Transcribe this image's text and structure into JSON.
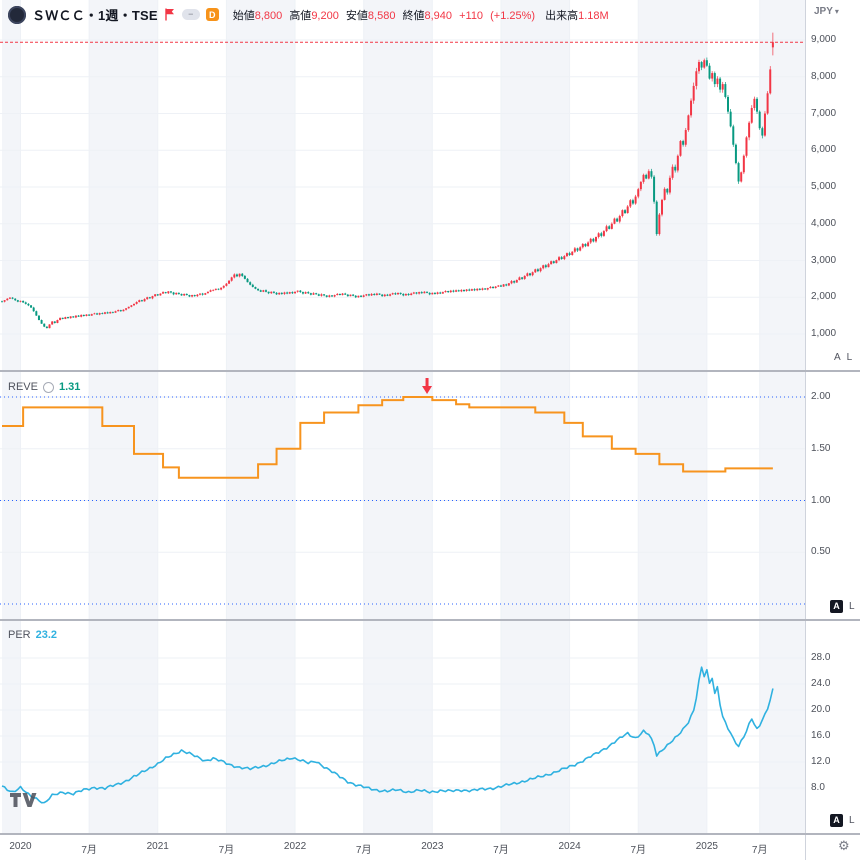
{
  "header": {
    "symbol_title": "ＳＷＣＣ・1週・TSE",
    "badge_d": "D",
    "ohlc": {
      "open_label": "始値",
      "open": "8,800",
      "high_label": "高値",
      "high": "9,200",
      "low_label": "安値",
      "low": "8,580",
      "close_label": "終値",
      "close": "8,940",
      "change": "+110",
      "change_pct": "(+1.25%)"
    },
    "volume_label": "出来高",
    "volume": "1.18M",
    "currency": "JPY"
  },
  "icons": {
    "adjustment_dash": "−",
    "caret_down": "▾",
    "gear": "⚙"
  },
  "panes": {
    "reve": {
      "label": "REVE",
      "value": "1.31"
    },
    "per": {
      "label": "PER",
      "value": "23.2"
    }
  },
  "scale_buttons": {
    "auto": "A",
    "log": "L"
  },
  "axes": {
    "price_ticks": [
      {
        "label": "9,000",
        "value": 9000
      },
      {
        "label": "8,000",
        "value": 8000
      },
      {
        "label": "7,000",
        "value": 7000
      },
      {
        "label": "6,000",
        "value": 6000
      },
      {
        "label": "5,000",
        "value": 5000
      },
      {
        "label": "4,000",
        "value": 4000
      },
      {
        "label": "3,000",
        "value": 3000
      },
      {
        "label": "2,000",
        "value": 2000
      },
      {
        "label": "1,000",
        "value": 1000
      }
    ],
    "reve_ticks": [
      {
        "label": "2.00",
        "value": 2.0
      },
      {
        "label": "1.50",
        "value": 1.5
      },
      {
        "label": "1.00",
        "value": 1.0
      },
      {
        "label": "0.50",
        "value": 0.5
      }
    ],
    "per_ticks": [
      {
        "label": "28.0",
        "value": 28
      },
      {
        "label": "24.0",
        "value": 24
      },
      {
        "label": "20.0",
        "value": 20
      },
      {
        "label": "16.0",
        "value": 16
      },
      {
        "label": "12.0",
        "value": 12
      },
      {
        "label": "8.0",
        "value": 8
      }
    ]
  },
  "time_axis": {
    "ticks": [
      {
        "label": "2020",
        "week": 7
      },
      {
        "label": "7月",
        "week": 33
      },
      {
        "label": "2021",
        "week": 59
      },
      {
        "label": "7月",
        "week": 85
      },
      {
        "label": "2022",
        "week": 111
      },
      {
        "label": "7月",
        "week": 137
      },
      {
        "label": "2023",
        "week": 163
      },
      {
        "label": "7月",
        "week": 189
      },
      {
        "label": "2024",
        "week": 215
      },
      {
        "label": "7月",
        "week": 241
      },
      {
        "label": "2025",
        "week": 267
      },
      {
        "label": "7月",
        "week": 287
      }
    ]
  },
  "colors": {
    "up": "#f23645",
    "down": "#089981",
    "reve_line": "#f7941e",
    "per_line": "#2fb1e0",
    "dotted_level": "#2962ff",
    "current_price_line": "#f23645",
    "grid": "#eef1f6",
    "band": "#f3f5f9",
    "value_green": "#089981"
  },
  "chart_data": [
    {
      "type": "candlestick",
      "name": "ＳＷＣＣ 株価 週足",
      "unit": "JPY",
      "interval": "1週",
      "x_unit": "week_index_from_2019-11",
      "ylim": [
        0,
        10000
      ],
      "grid_values": [
        1000,
        2000,
        3000,
        4000,
        5000,
        6000,
        7000,
        8000,
        9000
      ],
      "last_candle": {
        "open": 8800,
        "high": 9200,
        "low": 8580,
        "close": 8940,
        "change": 110,
        "change_pct": 1.25,
        "volume": "1.18M"
      },
      "closes": [
        1880,
        1920,
        1960,
        1990,
        1960,
        1920,
        1880,
        1900,
        1860,
        1820,
        1780,
        1720,
        1620,
        1500,
        1380,
        1280,
        1200,
        1160,
        1260,
        1340,
        1300,
        1380,
        1440,
        1410,
        1460,
        1430,
        1480,
        1450,
        1500,
        1470,
        1520,
        1490,
        1530,
        1500,
        1540,
        1560,
        1530,
        1570,
        1550,
        1590,
        1560,
        1600,
        1580,
        1620,
        1650,
        1620,
        1660,
        1700,
        1740,
        1780,
        1820,
        1870,
        1920,
        1890,
        1950,
        2000,
        1970,
        2030,
        2080,
        2050,
        2100,
        2140,
        2110,
        2160,
        2130,
        2080,
        2120,
        2090,
        2050,
        2090,
        2060,
        2020,
        2060,
        2030,
        2070,
        2100,
        2070,
        2110,
        2150,
        2190,
        2200,
        2230,
        2210,
        2260,
        2310,
        2370,
        2450,
        2540,
        2620,
        2570,
        2640,
        2580,
        2500,
        2410,
        2340,
        2280,
        2230,
        2190,
        2150,
        2190,
        2150,
        2110,
        2150,
        2120,
        2080,
        2120,
        2090,
        2130,
        2100,
        2140,
        2110,
        2150,
        2180,
        2140,
        2100,
        2140,
        2110,
        2070,
        2110,
        2080,
        2040,
        2080,
        2050,
        2010,
        2050,
        2020,
        2060,
        2090,
        2060,
        2100,
        2070,
        2030,
        2070,
        2040,
        2000,
        2040,
        2010,
        2050,
        2080,
        2050,
        2090,
        2060,
        2100,
        2070,
        2030,
        2070,
        2040,
        2080,
        2110,
        2080,
        2120,
        2090,
        2050,
        2090,
        2060,
        2100,
        2130,
        2100,
        2140,
        2110,
        2150,
        2120,
        2080,
        2120,
        2090,
        2130,
        2100,
        2140,
        2170,
        2140,
        2180,
        2150,
        2190,
        2160,
        2200,
        2170,
        2210,
        2180,
        2220,
        2190,
        2230,
        2200,
        2240,
        2210,
        2250,
        2280,
        2250,
        2290,
        2320,
        2290,
        2350,
        2320,
        2380,
        2440,
        2400,
        2470,
        2540,
        2500,
        2580,
        2650,
        2600,
        2680,
        2760,
        2710,
        2790,
        2870,
        2820,
        2900,
        2980,
        2930,
        3010,
        3090,
        3040,
        3120,
        3200,
        3150,
        3240,
        3330,
        3270,
        3360,
        3450,
        3390,
        3490,
        3590,
        3520,
        3640,
        3740,
        3670,
        3800,
        3930,
        3860,
        4000,
        4140,
        4060,
        4210,
        4370,
        4290,
        4470,
        4640,
        4550,
        4740,
        4940,
        5140,
        5330,
        5230,
        5430,
        5280,
        4600,
        3720,
        4250,
        4650,
        4950,
        4850,
        5250,
        5550,
        5450,
        5850,
        6250,
        6150,
        6550,
        6950,
        7350,
        7750,
        8150,
        8400,
        8250,
        8450,
        8300,
        7950,
        8100,
        7800,
        7950,
        7650,
        7800,
        7450,
        7050,
        6650,
        6150,
        5650,
        5150,
        5400,
        5850,
        6350,
        6750,
        7150,
        7400,
        7050,
        6600,
        6400,
        7000,
        7550,
        8200,
        8940
      ]
    },
    {
      "type": "step-line",
      "name": "REVE",
      "current": 1.31,
      "ylim": [
        0,
        2.4
      ],
      "dotted_levels": [
        2.0,
        1.0,
        0.0
      ],
      "grid_values": [
        0.5,
        1.0,
        1.5,
        2.0
      ],
      "marker": {
        "shape": "down-arrow",
        "color": "#f23645",
        "week": 161,
        "value": 2.0
      },
      "anchors": [
        [
          0,
          1.72
        ],
        [
          8,
          1.9
        ],
        [
          38,
          1.72
        ],
        [
          50,
          1.45
        ],
        [
          61,
          1.32
        ],
        [
          67,
          1.22
        ],
        [
          97,
          1.35
        ],
        [
          104,
          1.5
        ],
        [
          113,
          1.75
        ],
        [
          122,
          1.85
        ],
        [
          135,
          1.92
        ],
        [
          144,
          1.97
        ],
        [
          152,
          2.0
        ],
        [
          163,
          1.97
        ],
        [
          172,
          1.93
        ],
        [
          177,
          1.9
        ],
        [
          202,
          1.85
        ],
        [
          213,
          1.75
        ],
        [
          220,
          1.62
        ],
        [
          231,
          1.5
        ],
        [
          240,
          1.45
        ],
        [
          249,
          1.35
        ],
        [
          258,
          1.28
        ],
        [
          274,
          1.31
        ],
        [
          292,
          1.31
        ]
      ]
    },
    {
      "type": "line",
      "name": "PER",
      "current": 23.2,
      "ylim": [
        2,
        30
      ],
      "grid_values": [
        8,
        12,
        16,
        20,
        24,
        28
      ],
      "anchors": [
        [
          0,
          8.3
        ],
        [
          4,
          7.4
        ],
        [
          7,
          8.0
        ],
        [
          10,
          7.0
        ],
        [
          14,
          6.2
        ],
        [
          16,
          5.6
        ],
        [
          19,
          6.8
        ],
        [
          23,
          7.4
        ],
        [
          27,
          7.1
        ],
        [
          31,
          7.7
        ],
        [
          35,
          8.1
        ],
        [
          39,
          7.9
        ],
        [
          43,
          8.5
        ],
        [
          47,
          9.1
        ],
        [
          51,
          9.9
        ],
        [
          55,
          10.9
        ],
        [
          59,
          11.7
        ],
        [
          62,
          12.5
        ],
        [
          65,
          13.2
        ],
        [
          68,
          13.8
        ],
        [
          71,
          13.3
        ],
        [
          74,
          12.7
        ],
        [
          77,
          12.2
        ],
        [
          80,
          12.6
        ],
        [
          83,
          12.1
        ],
        [
          86,
          11.6
        ],
        [
          90,
          11.2
        ],
        [
          94,
          10.9
        ],
        [
          98,
          11.3
        ],
        [
          102,
          11.7
        ],
        [
          106,
          12.2
        ],
        [
          110,
          12.7
        ],
        [
          113,
          12.3
        ],
        [
          116,
          11.8
        ],
        [
          119,
          12.1
        ],
        [
          122,
          11.3
        ],
        [
          125,
          10.5
        ],
        [
          128,
          9.7
        ],
        [
          131,
          9.0
        ],
        [
          134,
          8.5
        ],
        [
          138,
          8.0
        ],
        [
          142,
          7.7
        ],
        [
          146,
          7.5
        ],
        [
          150,
          7.7
        ],
        [
          154,
          7.4
        ],
        [
          158,
          7.6
        ],
        [
          162,
          7.4
        ],
        [
          166,
          7.6
        ],
        [
          170,
          7.5
        ],
        [
          174,
          7.7
        ],
        [
          178,
          7.6
        ],
        [
          182,
          7.8
        ],
        [
          186,
          8.0
        ],
        [
          190,
          8.3
        ],
        [
          194,
          8.7
        ],
        [
          198,
          9.1
        ],
        [
          202,
          9.5
        ],
        [
          206,
          10.0
        ],
        [
          210,
          10.5
        ],
        [
          214,
          11.1
        ],
        [
          218,
          11.8
        ],
        [
          222,
          12.6
        ],
        [
          226,
          13.5
        ],
        [
          230,
          14.5
        ],
        [
          234,
          15.6
        ],
        [
          237,
          16.4
        ],
        [
          240,
          15.7
        ],
        [
          243,
          16.7
        ],
        [
          245,
          16.2
        ],
        [
          247,
          14.6
        ],
        [
          248,
          13.0
        ],
        [
          250,
          13.9
        ],
        [
          252,
          14.6
        ],
        [
          254,
          15.3
        ],
        [
          256,
          16.0
        ],
        [
          258,
          17.0
        ],
        [
          260,
          18.2
        ],
        [
          262,
          20.0
        ],
        [
          263,
          22.0
        ],
        [
          264,
          24.5
        ],
        [
          265,
          26.5
        ],
        [
          266,
          25.2
        ],
        [
          267,
          26.0
        ],
        [
          268,
          24.0
        ],
        [
          269,
          25.0
        ],
        [
          270,
          22.5
        ],
        [
          271,
          23.6
        ],
        [
          272,
          21.0
        ],
        [
          273,
          19.0
        ],
        [
          275,
          17.2
        ],
        [
          277,
          15.5
        ],
        [
          279,
          14.3
        ],
        [
          280,
          15.2
        ],
        [
          282,
          16.8
        ],
        [
          283,
          17.9
        ],
        [
          284,
          18.8
        ],
        [
          285,
          17.8
        ],
        [
          286,
          17.0
        ],
        [
          287,
          17.6
        ],
        [
          288,
          18.4
        ],
        [
          289,
          19.2
        ],
        [
          290,
          20.2
        ],
        [
          291,
          21.6
        ],
        [
          292,
          23.2
        ]
      ]
    }
  ]
}
